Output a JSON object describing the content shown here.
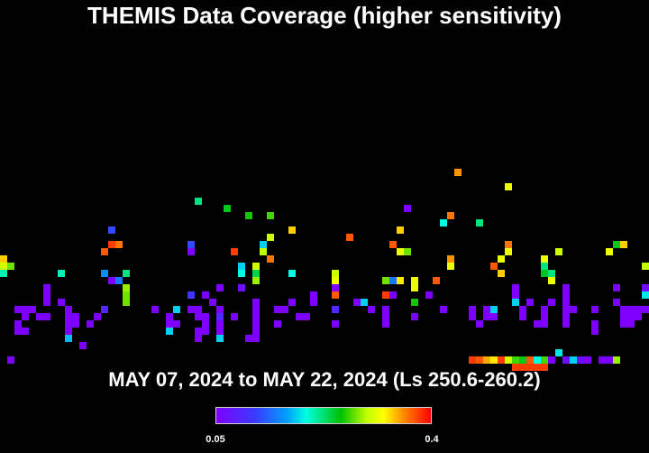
{
  "title": "THEMIS Data Coverage (higher sensitivity)",
  "date_range": "MAY 07, 2024 to MAY 22, 2024 (Ls 250.6-260.2)",
  "colorbar": {
    "min_label": "0.05",
    "max_label": "0.4",
    "colors": [
      "#8000ff",
      "#3a3aff",
      "#00a0ff",
      "#00ffe0",
      "#00c000",
      "#c0ff00",
      "#ffff00",
      "#ff8000",
      "#ff0000"
    ]
  },
  "chart_data": {
    "type": "heatmap",
    "title": "THEMIS Data Coverage (higher sensitivity)",
    "subtitle": "MAY 07, 2024 to MAY 22, 2024 (Ls 250.6-260.2)",
    "color_scale": {
      "min": 0.05,
      "max": 0.4
    },
    "grid": {
      "cols": 90,
      "rows": 47
    },
    "cells": [
      [
        63,
        23,
        0.35
      ],
      [
        70,
        25,
        0.3
      ],
      [
        27,
        27,
        0.2
      ],
      [
        56,
        28,
        0.05
      ],
      [
        31,
        28,
        0.22
      ],
      [
        34,
        29,
        0.23
      ],
      [
        37,
        29,
        0.24
      ],
      [
        62,
        29,
        0.36
      ],
      [
        66,
        30,
        0.2
      ],
      [
        61,
        30,
        0.18
      ],
      [
        15,
        31,
        0.1
      ],
      [
        40,
        31,
        0.33
      ],
      [
        55,
        31,
        0.33
      ],
      [
        37,
        32,
        0.28
      ],
      [
        48,
        32,
        0.37
      ],
      [
        15,
        33,
        0.38
      ],
      [
        26,
        33,
        0.1
      ],
      [
        36,
        33,
        0.16
      ],
      [
        54,
        33,
        0.37
      ],
      [
        70,
        33,
        0.36
      ],
      [
        86,
        33,
        0.33
      ],
      [
        16,
        33,
        0.36
      ],
      [
        32,
        34,
        0.38
      ],
      [
        14,
        34,
        0.37
      ],
      [
        55,
        34,
        0.3
      ],
      [
        84,
        34,
        0.3
      ],
      [
        56,
        34,
        0.25
      ],
      [
        26,
        34,
        0.05
      ],
      [
        77,
        34,
        0.28
      ],
      [
        0,
        35,
        0.33
      ],
      [
        69,
        35,
        0.3
      ],
      [
        62,
        35,
        0.35
      ],
      [
        85,
        33,
        0.22
      ],
      [
        36,
        34,
        0.27
      ],
      [
        0,
        36,
        0.28
      ],
      [
        1,
        36,
        0.25
      ],
      [
        37,
        35,
        0.36
      ],
      [
        75,
        35,
        0.3
      ],
      [
        89,
        36,
        0.27
      ],
      [
        33,
        36,
        0.16
      ],
      [
        8,
        37,
        0.19
      ],
      [
        35,
        36,
        0.28
      ],
      [
        62,
        36,
        0.3
      ],
      [
        68,
        36,
        0.37
      ],
      [
        75,
        36,
        0.2
      ],
      [
        0,
        37,
        0.19
      ],
      [
        35,
        37,
        0.21
      ],
      [
        40,
        37,
        0.18
      ],
      [
        69,
        37,
        0.33
      ],
      [
        76,
        37,
        0.2
      ],
      [
        17,
        37,
        0.2
      ],
      [
        15,
        38,
        0.05
      ],
      [
        46,
        37,
        0.28
      ],
      [
        70,
        34,
        0.3
      ],
      [
        75,
        37,
        0.22
      ],
      [
        57,
        38,
        0.3
      ],
      [
        33,
        37,
        0.18
      ],
      [
        46,
        38,
        0.3
      ],
      [
        54,
        38,
        0.12
      ],
      [
        55,
        38,
        0.32
      ],
      [
        76,
        38,
        0.3
      ],
      [
        35,
        38,
        0.26
      ],
      [
        53,
        38,
        0.25
      ],
      [
        16,
        38,
        0.12
      ],
      [
        14,
        37,
        0.13
      ],
      [
        6,
        39,
        0.05
      ],
      [
        60,
        38,
        0.37
      ],
      [
        57,
        39,
        0.3
      ],
      [
        46,
        39,
        0.05
      ],
      [
        85,
        39,
        0.05
      ],
      [
        17,
        39,
        0.26
      ],
      [
        33,
        39,
        0.06
      ],
      [
        78,
        39,
        0.05
      ],
      [
        30,
        39,
        0.05
      ],
      [
        78,
        40,
        0.05
      ],
      [
        26,
        40,
        0.09
      ],
      [
        59,
        40,
        0.05
      ],
      [
        71,
        40,
        0.05
      ],
      [
        17,
        40,
        0.25
      ],
      [
        89,
        39,
        0.06
      ],
      [
        6,
        40,
        0.05
      ],
      [
        46,
        40,
        0.37
      ],
      [
        53,
        40,
        0.38
      ],
      [
        28,
        40,
        0.05
      ],
      [
        43,
        40,
        0.05
      ],
      [
        54,
        40,
        0.05
      ],
      [
        71,
        41,
        0.16
      ],
      [
        89,
        40,
        0.17
      ],
      [
        76,
        41,
        0.05
      ],
      [
        6,
        41,
        0.05
      ],
      [
        8,
        41,
        0.05
      ],
      [
        29,
        41,
        0.05
      ],
      [
        40,
        41,
        0.05
      ],
      [
        73,
        41,
        0.05
      ],
      [
        71,
        39,
        0.05
      ],
      [
        17,
        41,
        0.25
      ],
      [
        43,
        41,
        0.05
      ],
      [
        78,
        41,
        0.05
      ],
      [
        35,
        41,
        0.05
      ],
      [
        85,
        41,
        0.05
      ],
      [
        50,
        41,
        0.16
      ],
      [
        57,
        41,
        0.23
      ],
      [
        65,
        42,
        0.05
      ],
      [
        4,
        42,
        0.05
      ],
      [
        9,
        42,
        0.05
      ],
      [
        3,
        42,
        0.05
      ],
      [
        14,
        42,
        0.08
      ],
      [
        21,
        42,
        0.05
      ],
      [
        24,
        42,
        0.16
      ],
      [
        26,
        42,
        0.05
      ],
      [
        27,
        42,
        0.05
      ],
      [
        39,
        42,
        0.05
      ],
      [
        53,
        42,
        0.05
      ],
      [
        67,
        42,
        0.05
      ],
      [
        68,
        42,
        0.16
      ],
      [
        72,
        42,
        0.05
      ],
      [
        78,
        42,
        0.05
      ],
      [
        79,
        42,
        0.05
      ],
      [
        82,
        42,
        0.05
      ],
      [
        86,
        42,
        0.05
      ],
      [
        87,
        42,
        0.05
      ],
      [
        89,
        42,
        0.05
      ],
      [
        2,
        42,
        0.05
      ],
      [
        38,
        42,
        0.05
      ],
      [
        51,
        42,
        0.05
      ],
      [
        61,
        42,
        0.05
      ],
      [
        88,
        42,
        0.05
      ],
      [
        75,
        42,
        0.05
      ],
      [
        30,
        42,
        0.05
      ],
      [
        49,
        41,
        0.05
      ],
      [
        46,
        42,
        0.08
      ],
      [
        35,
        42,
        0.05
      ],
      [
        3,
        43,
        0.05
      ],
      [
        6,
        43,
        0.05
      ],
      [
        9,
        43,
        0.05
      ],
      [
        13,
        43,
        0.05
      ],
      [
        23,
        43,
        0.05
      ],
      [
        27,
        43,
        0.05
      ],
      [
        30,
        43,
        0.08
      ],
      [
        35,
        43,
        0.05
      ],
      [
        42,
        43,
        0.05
      ],
      [
        53,
        43,
        0.05
      ],
      [
        65,
        43,
        0.05
      ],
      [
        67,
        43,
        0.05
      ],
      [
        68,
        43,
        0.05
      ],
      [
        72,
        43,
        0.05
      ],
      [
        86,
        43,
        0.05
      ],
      [
        87,
        43,
        0.05
      ],
      [
        88,
        43,
        0.05
      ],
      [
        78,
        43,
        0.05
      ],
      [
        75,
        43,
        0.05
      ],
      [
        41,
        43,
        0.05
      ],
      [
        57,
        43,
        0.05
      ],
      [
        32,
        43,
        0.05
      ],
      [
        5,
        43,
        0.05
      ],
      [
        10,
        43,
        0.05
      ],
      [
        28,
        43,
        0.05
      ],
      [
        86,
        44,
        0.05
      ],
      [
        10,
        44,
        0.05
      ],
      [
        12,
        44,
        0.05
      ],
      [
        9,
        44,
        0.05
      ],
      [
        2,
        44,
        0.05
      ],
      [
        23,
        44,
        0.05
      ],
      [
        28,
        44,
        0.05
      ],
      [
        35,
        44,
        0.05
      ],
      [
        38,
        44,
        0.05
      ],
      [
        75,
        44,
        0.05
      ],
      [
        78,
        44,
        0.05
      ],
      [
        82,
        44,
        0.05
      ],
      [
        86,
        44,
        0.05
      ],
      [
        87,
        44,
        0.05
      ],
      [
        46,
        44,
        0.05
      ],
      [
        66,
        44,
        0.05
      ],
      [
        53,
        44,
        0.05
      ],
      [
        30,
        44,
        0.05
      ],
      [
        24,
        44,
        0.05
      ],
      [
        2,
        45,
        0.05
      ],
      [
        9,
        45,
        0.05
      ],
      [
        23,
        45,
        0.16
      ],
      [
        30,
        45,
        0.05
      ],
      [
        35,
        45,
        0.05
      ],
      [
        27,
        45,
        0.05
      ],
      [
        28,
        45,
        0.05
      ],
      [
        74,
        44,
        0.05
      ],
      [
        82,
        45,
        0.05
      ],
      [
        3,
        45,
        0.05
      ],
      [
        9,
        46,
        0.15
      ],
      [
        30,
        46,
        0.16
      ],
      [
        34,
        46,
        0.05
      ],
      [
        35,
        46,
        0.05
      ],
      [
        27,
        46,
        0.05
      ],
      [
        11,
        47,
        0.05
      ],
      [
        77,
        48,
        0.17
      ],
      [
        1,
        49,
        0.05
      ],
      [
        65,
        49,
        0.38
      ],
      [
        66,
        49,
        0.37
      ],
      [
        67,
        49,
        0.34
      ],
      [
        68,
        49,
        0.32
      ],
      [
        69,
        49,
        0.38
      ],
      [
        70,
        49,
        0.28
      ],
      [
        71,
        49,
        0.24
      ],
      [
        72,
        49,
        0.22
      ],
      [
        73,
        49,
        0.37
      ],
      [
        74,
        49,
        0.18
      ],
      [
        75,
        49,
        0.24
      ],
      [
        76,
        49,
        0.05
      ],
      [
        78,
        49,
        0.06
      ],
      [
        79,
        49,
        0.16
      ],
      [
        80,
        49,
        0.06
      ],
      [
        81,
        49,
        0.05
      ],
      [
        83,
        49,
        0.05
      ],
      [
        84,
        49,
        0.05
      ],
      [
        85,
        49,
        0.26
      ],
      [
        71,
        50,
        0.38
      ],
      [
        72,
        50,
        0.38
      ],
      [
        73,
        50,
        0.38
      ],
      [
        74,
        50,
        0.38
      ],
      [
        75,
        50,
        0.38
      ]
    ]
  }
}
